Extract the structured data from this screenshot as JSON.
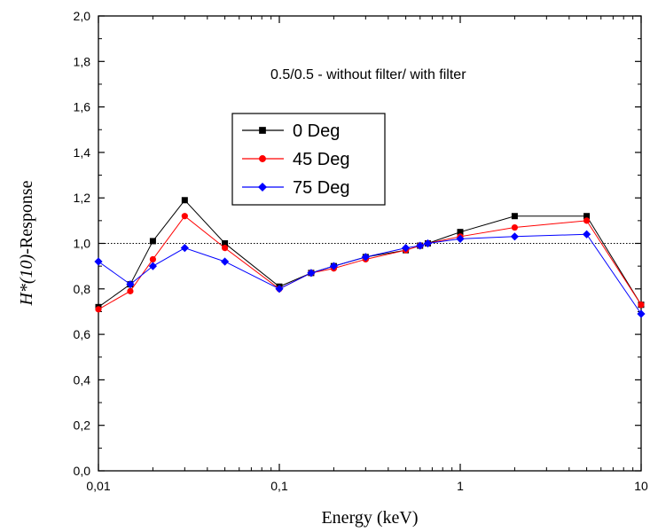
{
  "chart_data": {
    "type": "line",
    "xscale": "log",
    "xlim": [
      0.01,
      10
    ],
    "ylim": [
      0.0,
      2.0
    ],
    "x_ticks": [
      0.01,
      0.1,
      1,
      10
    ],
    "x_tick_labels": [
      "0,01",
      "0,1",
      "1",
      "10"
    ],
    "y_ticks": [
      0.0,
      0.2,
      0.4,
      0.6,
      0.8,
      1.0,
      1.2,
      1.4,
      1.6,
      1.8,
      2.0
    ],
    "y_tick_labels": [
      "0,0",
      "0,2",
      "0,4",
      "0,6",
      "0,8",
      "1,0",
      "1,2",
      "1,4",
      "1,6",
      "1,8",
      "2,0"
    ],
    "xlabel": "Energy (keV)",
    "ylabel_italic": "H*(10)",
    "ylabel_rest": "-Response",
    "annotation": "0.5/0.5 - without filter/ with filter",
    "reference_line": {
      "y": 1.0,
      "style": "dotted"
    },
    "legend_position": "upper-left",
    "grid": false,
    "series": [
      {
        "name": "0 Deg",
        "color": "#000000",
        "marker": "square",
        "x": [
          0.01,
          0.015,
          0.02,
          0.03,
          0.05,
          0.1,
          0.15,
          0.2,
          0.3,
          0.5,
          0.6,
          0.662,
          1.0,
          2.0,
          5.0,
          10.0
        ],
        "y": [
          0.72,
          0.82,
          1.01,
          1.19,
          1.0,
          0.81,
          0.87,
          0.9,
          0.94,
          0.97,
          0.99,
          1.0,
          1.05,
          1.12,
          1.12,
          0.73
        ]
      },
      {
        "name": "45 Deg",
        "color": "#ff0000",
        "marker": "circle",
        "x": [
          0.01,
          0.015,
          0.02,
          0.03,
          0.05,
          0.1,
          0.15,
          0.2,
          0.3,
          0.5,
          0.6,
          0.662,
          1.0,
          2.0,
          5.0,
          10.0
        ],
        "y": [
          0.71,
          0.79,
          0.93,
          1.12,
          0.98,
          0.8,
          0.87,
          0.89,
          0.93,
          0.97,
          0.99,
          1.0,
          1.03,
          1.07,
          1.1,
          0.73
        ]
      },
      {
        "name": "75 Deg",
        "color": "#0000ff",
        "marker": "diamond",
        "x": [
          0.01,
          0.015,
          0.02,
          0.03,
          0.05,
          0.1,
          0.15,
          0.2,
          0.3,
          0.5,
          0.6,
          0.662,
          1.0,
          2.0,
          5.0,
          10.0
        ],
        "y": [
          0.92,
          0.82,
          0.9,
          0.98,
          0.92,
          0.8,
          0.87,
          0.9,
          0.94,
          0.98,
          0.99,
          1.0,
          1.02,
          1.03,
          1.04,
          0.69
        ]
      }
    ]
  }
}
